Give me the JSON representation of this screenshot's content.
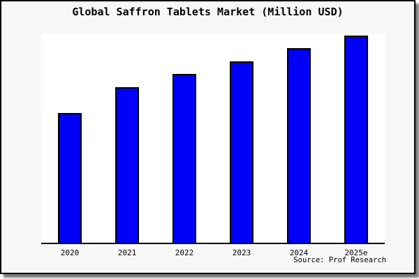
{
  "chart_data": {
    "type": "bar",
    "title": "Global Saffron Tablets Market (Million USD)",
    "categories": [
      "2020",
      "2021",
      "2022",
      "2023",
      "2024",
      "2025e"
    ],
    "values": [
      62.6,
      75.2,
      81.5,
      87.7,
      93.8,
      100
    ],
    "values_note": "no y-axis tick labels or gridlines shown; values estimated relative to 2025e = 100",
    "ylim": [
      0,
      100.7
    ],
    "xlabel": "",
    "ylabel": "",
    "grid": false,
    "legend_position": "none",
    "bar_color": "#0000f8",
    "bar_border_color": "#000000",
    "plot_background": "#ffffff",
    "figure_background": "#f8f8f8",
    "source_label": "Source: Prof Research"
  }
}
